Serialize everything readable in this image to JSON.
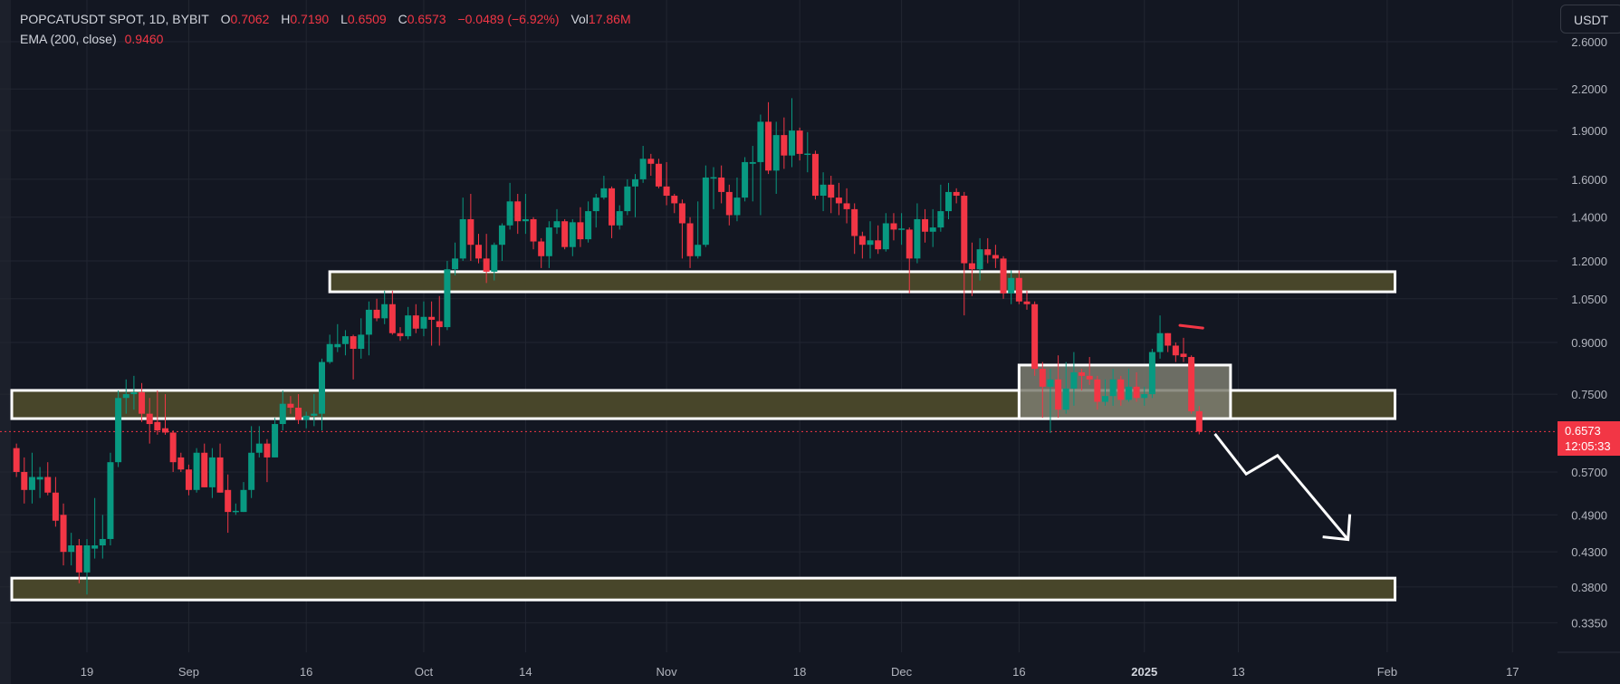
{
  "legend": {
    "symbol": "POPCATUSDT SPOT, 1D, BYBIT",
    "o_label": "O",
    "o": "0.7062",
    "h_label": "H",
    "h": "0.7190",
    "l_label": "L",
    "l": "0.6509",
    "c_label": "C",
    "c": "0.6573",
    "change": "−0.0489 (−6.92%)",
    "vol_label": "Vol",
    "vol": "17.86M",
    "ema_label": "EMA (200, close)",
    "ema": "0.9460"
  },
  "currency_button": "USDT",
  "price_tag": {
    "price": "0.6573",
    "countdown": "12:05:33"
  },
  "colors": {
    "up": "#089981",
    "down": "#f23645",
    "background": "#131722",
    "zone_fill": "#48462a",
    "zone_border": "#ffffff",
    "consolidation_fill": "#7c7c70"
  },
  "chart_data": {
    "type": "candlestick",
    "title": "POPCATUSDT SPOT, 1D, BYBIT",
    "y_scale": "log",
    "ylim": [
      0.31,
      2.75
    ],
    "grid": true,
    "interval": "1D",
    "first_candle_date": "2024-08-10",
    "ohlc_fields": [
      "open",
      "high",
      "low",
      "close"
    ],
    "ohlc": [
      [
        0.62,
        0.63,
        0.56,
        0.57
      ],
      [
        0.57,
        0.6,
        0.51,
        0.535
      ],
      [
        0.535,
        0.61,
        0.51,
        0.56
      ],
      [
        0.555,
        0.58,
        0.52,
        0.56
      ],
      [
        0.56,
        0.59,
        0.525,
        0.53
      ],
      [
        0.53,
        0.56,
        0.47,
        0.48
      ],
      [
        0.49,
        0.51,
        0.41,
        0.43
      ],
      [
        0.43,
        0.46,
        0.41,
        0.44
      ],
      [
        0.44,
        0.45,
        0.385,
        0.4
      ],
      [
        0.4,
        0.45,
        0.37,
        0.44
      ],
      [
        0.435,
        0.52,
        0.42,
        0.44
      ],
      [
        0.44,
        0.49,
        0.42,
        0.45
      ],
      [
        0.45,
        0.61,
        0.44,
        0.59
      ],
      [
        0.59,
        0.76,
        0.58,
        0.74
      ],
      [
        0.74,
        0.79,
        0.7,
        0.75
      ],
      [
        0.75,
        0.8,
        0.71,
        0.755
      ],
      [
        0.755,
        0.78,
        0.68,
        0.7
      ],
      [
        0.7,
        0.74,
        0.63,
        0.675
      ],
      [
        0.68,
        0.76,
        0.65,
        0.66
      ],
      [
        0.665,
        0.75,
        0.65,
        0.655
      ],
      [
        0.655,
        0.66,
        0.57,
        0.59
      ],
      [
        0.6,
        0.61,
        0.57,
        0.575
      ],
      [
        0.575,
        0.585,
        0.525,
        0.535
      ],
      [
        0.535,
        0.62,
        0.53,
        0.61
      ],
      [
        0.61,
        0.63,
        0.54,
        0.54
      ],
      [
        0.54,
        0.62,
        0.52,
        0.6
      ],
      [
        0.6,
        0.63,
        0.53,
        0.53
      ],
      [
        0.535,
        0.565,
        0.46,
        0.495
      ],
      [
        0.495,
        0.51,
        0.49,
        0.497
      ],
      [
        0.495,
        0.55,
        0.495,
        0.535
      ],
      [
        0.535,
        0.67,
        0.52,
        0.61
      ],
      [
        0.61,
        0.67,
        0.6,
        0.63
      ],
      [
        0.63,
        0.64,
        0.55,
        0.6
      ],
      [
        0.6,
        0.69,
        0.6,
        0.675
      ],
      [
        0.675,
        0.76,
        0.66,
        0.725
      ],
      [
        0.725,
        0.745,
        0.7,
        0.715
      ],
      [
        0.715,
        0.75,
        0.675,
        0.685
      ],
      [
        0.685,
        0.705,
        0.665,
        0.695
      ],
      [
        0.695,
        0.75,
        0.67,
        0.7
      ],
      [
        0.7,
        0.85,
        0.66,
        0.84
      ],
      [
        0.84,
        0.925,
        0.835,
        0.895
      ],
      [
        0.885,
        0.96,
        0.87,
        0.895
      ],
      [
        0.895,
        0.94,
        0.86,
        0.92
      ],
      [
        0.92,
        0.925,
        0.79,
        0.88
      ],
      [
        0.88,
        0.98,
        0.85,
        0.925
      ],
      [
        0.925,
        1.04,
        0.86,
        1.01
      ],
      [
        1.01,
        1.05,
        0.97,
        0.98
      ],
      [
        0.98,
        1.08,
        0.96,
        1.03
      ],
      [
        1.03,
        1.08,
        0.925,
        0.93
      ],
      [
        0.93,
        0.95,
        0.905,
        0.92
      ],
      [
        0.92,
        1.02,
        0.91,
        0.99
      ],
      [
        0.99,
        1.03,
        0.93,
        0.945
      ],
      [
        0.945,
        1.04,
        0.92,
        0.985
      ],
      [
        0.985,
        1.04,
        0.89,
        0.975
      ],
      [
        0.97,
        1.06,
        0.89,
        0.95
      ],
      [
        0.95,
        1.2,
        0.94,
        1.165
      ],
      [
        1.165,
        1.28,
        1.14,
        1.21
      ],
      [
        1.21,
        1.5,
        1.2,
        1.39
      ],
      [
        1.39,
        1.52,
        1.2,
        1.27
      ],
      [
        1.27,
        1.32,
        1.19,
        1.21
      ],
      [
        1.21,
        1.32,
        1.11,
        1.155
      ],
      [
        1.155,
        1.28,
        1.12,
        1.27
      ],
      [
        1.27,
        1.37,
        1.2,
        1.36
      ],
      [
        1.36,
        1.58,
        1.34,
        1.48
      ],
      [
        1.48,
        1.52,
        1.32,
        1.38
      ],
      [
        1.38,
        1.52,
        1.32,
        1.39
      ],
      [
        1.39,
        1.4,
        1.25,
        1.285
      ],
      [
        1.285,
        1.3,
        1.17,
        1.22
      ],
      [
        1.22,
        1.38,
        1.17,
        1.35
      ],
      [
        1.35,
        1.44,
        1.32,
        1.38
      ],
      [
        1.38,
        1.39,
        1.25,
        1.26
      ],
      [
        1.26,
        1.39,
        1.22,
        1.375
      ],
      [
        1.375,
        1.45,
        1.26,
        1.295
      ],
      [
        1.295,
        1.48,
        1.28,
        1.43
      ],
      [
        1.43,
        1.52,
        1.35,
        1.5
      ],
      [
        1.5,
        1.62,
        1.49,
        1.55
      ],
      [
        1.55,
        1.56,
        1.3,
        1.36
      ],
      [
        1.36,
        1.46,
        1.34,
        1.43
      ],
      [
        1.43,
        1.6,
        1.41,
        1.56
      ],
      [
        1.56,
        1.63,
        1.4,
        1.6
      ],
      [
        1.6,
        1.8,
        1.58,
        1.72
      ],
      [
        1.72,
        1.75,
        1.62,
        1.69
      ],
      [
        1.69,
        1.72,
        1.55,
        1.56
      ],
      [
        1.56,
        1.7,
        1.46,
        1.51
      ],
      [
        1.51,
        1.52,
        1.42,
        1.47
      ],
      [
        1.47,
        1.49,
        1.21,
        1.37
      ],
      [
        1.37,
        1.4,
        1.17,
        1.22
      ],
      [
        1.22,
        1.48,
        1.21,
        1.27
      ],
      [
        1.27,
        1.68,
        1.26,
        1.61
      ],
      [
        1.61,
        1.67,
        1.44,
        1.612
      ],
      [
        1.61,
        1.68,
        1.47,
        1.53
      ],
      [
        1.53,
        1.57,
        1.36,
        1.41
      ],
      [
        1.41,
        1.61,
        1.38,
        1.5
      ],
      [
        1.5,
        1.73,
        1.48,
        1.7
      ],
      [
        1.69,
        1.8,
        1.48,
        1.7
      ],
      [
        1.7,
        2.01,
        1.41,
        1.96
      ],
      [
        1.96,
        2.1,
        1.63,
        1.65
      ],
      [
        1.65,
        1.96,
        1.52,
        1.87
      ],
      [
        1.87,
        1.99,
        1.66,
        1.74
      ],
      [
        1.74,
        2.13,
        1.67,
        1.9
      ],
      [
        1.9,
        1.92,
        1.71,
        1.75
      ],
      [
        1.75,
        1.89,
        1.64,
        1.752
      ],
      [
        1.75,
        1.77,
        1.49,
        1.51
      ],
      [
        1.51,
        1.64,
        1.43,
        1.57
      ],
      [
        1.57,
        1.62,
        1.42,
        1.5
      ],
      [
        1.5,
        1.58,
        1.41,
        1.47
      ],
      [
        1.47,
        1.55,
        1.37,
        1.44
      ],
      [
        1.44,
        1.47,
        1.23,
        1.31
      ],
      [
        1.31,
        1.33,
        1.21,
        1.27
      ],
      [
        1.27,
        1.38,
        1.21,
        1.29
      ],
      [
        1.29,
        1.36,
        1.23,
        1.25
      ],
      [
        1.25,
        1.42,
        1.24,
        1.37
      ],
      [
        1.37,
        1.42,
        1.29,
        1.34
      ],
      [
        1.34,
        1.42,
        1.27,
        1.345
      ],
      [
        1.34,
        1.35,
        1.07,
        1.21
      ],
      [
        1.21,
        1.47,
        1.19,
        1.39
      ],
      [
        1.39,
        1.44,
        1.28,
        1.33
      ],
      [
        1.33,
        1.44,
        1.26,
        1.35
      ],
      [
        1.35,
        1.57,
        1.33,
        1.43
      ],
      [
        1.43,
        1.58,
        1.39,
        1.53
      ],
      [
        1.53,
        1.55,
        1.47,
        1.51
      ],
      [
        1.51,
        1.53,
        0.99,
        1.19
      ],
      [
        1.19,
        1.28,
        1.06,
        1.165
      ],
      [
        1.165,
        1.3,
        1.12,
        1.25
      ],
      [
        1.25,
        1.3,
        1.19,
        1.225
      ],
      [
        1.225,
        1.27,
        1.17,
        1.21
      ],
      [
        1.21,
        1.22,
        1.05,
        1.07
      ],
      [
        1.07,
        1.16,
        1.03,
        1.13
      ],
      [
        1.13,
        1.16,
        1.03,
        1.04
      ],
      [
        1.04,
        1.08,
        1.01,
        1.03
      ],
      [
        1.03,
        1.04,
        0.8,
        0.82
      ],
      [
        0.82,
        0.84,
        0.69,
        0.77
      ],
      [
        0.77,
        0.82,
        0.654,
        0.79
      ],
      [
        0.79,
        0.86,
        0.69,
        0.71
      ],
      [
        0.71,
        0.84,
        0.7,
        0.765
      ],
      [
        0.765,
        0.87,
        0.72,
        0.81
      ],
      [
        0.81,
        0.82,
        0.76,
        0.8
      ],
      [
        0.8,
        0.855,
        0.775,
        0.79
      ],
      [
        0.79,
        0.8,
        0.71,
        0.73
      ],
      [
        0.73,
        0.79,
        0.72,
        0.745
      ],
      [
        0.745,
        0.82,
        0.72,
        0.79
      ],
      [
        0.79,
        0.8,
        0.72,
        0.735
      ],
      [
        0.735,
        0.82,
        0.73,
        0.77
      ],
      [
        0.77,
        0.81,
        0.73,
        0.74
      ],
      [
        0.74,
        0.77,
        0.72,
        0.75
      ],
      [
        0.75,
        0.88,
        0.74,
        0.87
      ],
      [
        0.87,
        0.99,
        0.85,
        0.93
      ],
      [
        0.93,
        0.93,
        0.87,
        0.89
      ],
      [
        0.89,
        0.9,
        0.84,
        0.86
      ],
      [
        0.865,
        0.915,
        0.84,
        0.855
      ],
      [
        0.855,
        0.86,
        0.7,
        0.7062
      ],
      [
        0.7062,
        0.719,
        0.6509,
        0.6573
      ]
    ],
    "last_price": 0.6573,
    "price_ticks": [
      "2.6000",
      "2.2000",
      "1.9000",
      "1.6000",
      "1.4000",
      "1.2000",
      "1.0500",
      "0.9000",
      "0.7500",
      "0.5700",
      "0.4900",
      "0.4300",
      "0.3800",
      "0.3350"
    ],
    "date_ticks": [
      {
        "label": "19",
        "date": "2024-08-19"
      },
      {
        "label": "Sep",
        "date": "2024-09-01"
      },
      {
        "label": "16",
        "date": "2024-09-16"
      },
      {
        "label": "Oct",
        "date": "2024-10-01"
      },
      {
        "label": "14",
        "date": "2024-10-14"
      },
      {
        "label": "Nov",
        "date": "2024-11-01"
      },
      {
        "label": "18",
        "date": "2024-11-18"
      },
      {
        "label": "Dec",
        "date": "2024-12-01"
      },
      {
        "label": "16",
        "date": "2024-12-16"
      },
      {
        "label": "2025",
        "date": "2025-01-01",
        "bold": true
      },
      {
        "label": "13",
        "date": "2025-01-13"
      },
      {
        "label": "Feb",
        "date": "2025-02-01"
      },
      {
        "label": "17",
        "date": "2025-02-17"
      }
    ],
    "zones": [
      {
        "kind": "resistance",
        "price_low": 1.076,
        "price_high": 1.155,
        "from": "2024-09-19",
        "to": "2025-02-02"
      },
      {
        "kind": "support",
        "price_low": 0.688,
        "price_high": 0.76,
        "from": "2024-08-10",
        "to": "2025-02-02"
      },
      {
        "kind": "support",
        "price_low": 0.363,
        "price_high": 0.392,
        "from": "2024-08-10",
        "to": "2025-02-02"
      },
      {
        "kind": "consolidation",
        "price_low": 0.688,
        "price_high": 0.831,
        "from": "2024-12-16",
        "to": "2025-01-12"
      }
    ],
    "projection_arrow": [
      {
        "date": "2025-01-10",
        "price": 0.652
      },
      {
        "date": "2025-01-14",
        "price": 0.566
      },
      {
        "date": "2025-01-18",
        "price": 0.604
      },
      {
        "date": "2025-01-27",
        "price": 0.449
      }
    ],
    "red_mark": {
      "from": "2025-01-06",
      "to": "2025-01-08",
      "price": 0.953
    }
  }
}
